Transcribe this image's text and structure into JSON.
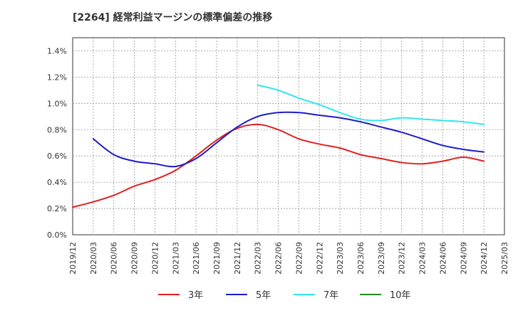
{
  "chart_data": {
    "type": "line",
    "title": "[2264]  経常利益マージンの標準偏差の推移",
    "xlabel": "",
    "ylabel": "",
    "x_tick_labels": [
      "2019/12",
      "2020/03",
      "2020/06",
      "2020/09",
      "2020/12",
      "2021/03",
      "2021/06",
      "2021/09",
      "2021/12",
      "2022/03",
      "2022/06",
      "2022/09",
      "2022/12",
      "2023/03",
      "2023/06",
      "2023/09",
      "2023/12",
      "2024/03",
      "2024/06",
      "2024/09",
      "2024/12",
      "2025/03"
    ],
    "y_tick_labels": [
      "0.0%",
      "0.2%",
      "0.4%",
      "0.6%",
      "0.8%",
      "1.0%",
      "1.2%",
      "1.4%"
    ],
    "ylim": [
      0,
      1.5
    ],
    "y_unit": "%",
    "grid": true,
    "legend_position": "bottom",
    "series": [
      {
        "name": "3年",
        "color": "#e02020",
        "x": [
          "2019/12",
          "2020/03",
          "2020/06",
          "2020/09",
          "2020/12",
          "2021/03",
          "2021/06",
          "2021/09",
          "2021/12",
          "2022/03",
          "2022/06",
          "2022/09",
          "2022/12",
          "2023/03",
          "2023/06",
          "2023/09",
          "2023/12",
          "2024/03",
          "2024/06",
          "2024/09",
          "2024/12"
        ],
        "values": [
          0.21,
          0.25,
          0.3,
          0.37,
          0.42,
          0.49,
          0.6,
          0.72,
          0.81,
          0.84,
          0.8,
          0.73,
          0.69,
          0.66,
          0.61,
          0.58,
          0.55,
          0.54,
          0.56,
          0.59,
          0.56
        ]
      },
      {
        "name": "5年",
        "color": "#1c1cc8",
        "x": [
          "2020/03",
          "2020/06",
          "2020/09",
          "2020/12",
          "2021/03",
          "2021/06",
          "2021/09",
          "2021/12",
          "2022/03",
          "2022/06",
          "2022/09",
          "2022/12",
          "2023/03",
          "2023/06",
          "2023/09",
          "2023/12",
          "2024/03",
          "2024/06",
          "2024/09",
          "2024/12"
        ],
        "values": [
          0.73,
          0.61,
          0.56,
          0.54,
          0.52,
          0.58,
          0.7,
          0.82,
          0.9,
          0.93,
          0.93,
          0.91,
          0.89,
          0.86,
          0.82,
          0.78,
          0.73,
          0.68,
          0.65,
          0.63
        ]
      },
      {
        "name": "7年",
        "color": "#33e5ee",
        "x": [
          "2022/03",
          "2022/06",
          "2022/09",
          "2022/12",
          "2023/03",
          "2023/06",
          "2023/09",
          "2023/12",
          "2024/03",
          "2024/06",
          "2024/09",
          "2024/12"
        ],
        "values": [
          1.14,
          1.1,
          1.04,
          0.99,
          0.93,
          0.88,
          0.87,
          0.89,
          0.88,
          0.87,
          0.86,
          0.84
        ]
      },
      {
        "name": "10年",
        "color": "#228b22",
        "x": [],
        "values": []
      }
    ]
  }
}
